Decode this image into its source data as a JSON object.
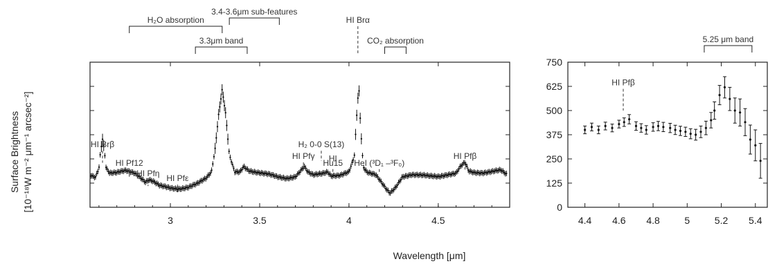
{
  "chart_data": [
    {
      "type": "scatter",
      "title": "",
      "xlabel": "Wavelength [μm]",
      "ylabel": "Surface Brightness",
      "ylabel_line2": "[10⁻¹⁸W m⁻² μm⁻¹ arcsec⁻²]",
      "xlim": [
        2.55,
        4.9
      ],
      "ylim": [
        0,
        750
      ],
      "xticks": [
        "3",
        "3.5",
        "4",
        "4.5"
      ],
      "xtick_values": [
        3,
        3.5,
        4,
        4.5
      ],
      "grid": false,
      "spectrum_knots": [
        [
          2.55,
          165
        ],
        [
          2.58,
          155
        ],
        [
          2.6,
          205
        ],
        [
          2.61,
          300
        ],
        [
          2.62,
          355
        ],
        [
          2.63,
          300
        ],
        [
          2.64,
          205
        ],
        [
          2.66,
          178
        ],
        [
          2.7,
          178
        ],
        [
          2.75,
          188
        ],
        [
          2.8,
          178
        ],
        [
          2.83,
          158
        ],
        [
          2.86,
          132
        ],
        [
          2.88,
          142
        ],
        [
          2.9,
          135
        ],
        [
          2.94,
          110
        ],
        [
          3.0,
          100
        ],
        [
          3.05,
          97
        ],
        [
          3.1,
          103
        ],
        [
          3.15,
          120
        ],
        [
          3.2,
          150
        ],
        [
          3.23,
          185
        ],
        [
          3.25,
          300
        ],
        [
          3.27,
          480
        ],
        [
          3.29,
          610
        ],
        [
          3.31,
          480
        ],
        [
          3.33,
          270
        ],
        [
          3.36,
          180
        ],
        [
          3.39,
          180
        ],
        [
          3.41,
          210
        ],
        [
          3.44,
          190
        ],
        [
          3.5,
          180
        ],
        [
          3.55,
          170
        ],
        [
          3.6,
          155
        ],
        [
          3.65,
          150
        ],
        [
          3.7,
          160
        ],
        [
          3.73,
          190
        ],
        [
          3.75,
          210
        ],
        [
          3.77,
          180
        ],
        [
          3.8,
          165
        ],
        [
          3.85,
          175
        ],
        [
          3.88,
          185
        ],
        [
          3.9,
          165
        ],
        [
          3.95,
          165
        ],
        [
          4.0,
          180
        ],
        [
          4.03,
          260
        ],
        [
          4.045,
          500
        ],
        [
          4.055,
          630
        ],
        [
          4.065,
          420
        ],
        [
          4.08,
          210
        ],
        [
          4.1,
          185
        ],
        [
          4.15,
          170
        ],
        [
          4.18,
          130
        ],
        [
          4.21,
          90
        ],
        [
          4.23,
          70
        ],
        [
          4.26,
          100
        ],
        [
          4.3,
          160
        ],
        [
          4.35,
          170
        ],
        [
          4.4,
          165
        ],
        [
          4.45,
          160
        ],
        [
          4.5,
          160
        ],
        [
          4.55,
          170
        ],
        [
          4.6,
          175
        ],
        [
          4.625,
          210
        ],
        [
          4.65,
          230
        ],
        [
          4.67,
          185
        ],
        [
          4.7,
          180
        ],
        [
          4.75,
          180
        ],
        [
          4.8,
          185
        ],
        [
          4.85,
          190
        ],
        [
          4.88,
          170
        ]
      ],
      "annotations": [
        {
          "id": "br-beta",
          "label": "HI Brβ",
          "x": 2.62,
          "y_top": 310,
          "line_bottom": 230
        },
        {
          "id": "pf12",
          "label": "HI Pf12",
          "x": 2.77,
          "y_top": 215,
          "line_bottom": 150
        },
        {
          "id": "pf-eta",
          "label": "HI Pfη",
          "x": 2.875,
          "y_top": 160,
          "line_bottom": 110
        },
        {
          "id": "pf-eps",
          "label": "HI Pfε",
          "x": 3.04,
          "y_top": 135,
          "line_bottom": 70
        },
        {
          "id": "pf-gamma",
          "label": "HI Pfγ",
          "x": 3.745,
          "y_top": 250,
          "line_bottom": 185
        },
        {
          "id": "h2",
          "label": "H₂ 0-0 S(13)",
          "x": 3.845,
          "y_top": 310,
          "line_bottom": 240
        },
        {
          "id": "hu15-a",
          "label": "HI",
          "x": 3.91,
          "y_top": 238
        },
        {
          "id": "hu15-b",
          "label": "Hu15",
          "x": 3.91,
          "y_top": 215,
          "line_bottom": 165
        },
        {
          "id": "hei",
          "label": "HeI (³D₁ –³F₀)",
          "x": 4.17,
          "y_top": 215,
          "line_bottom": 175
        },
        {
          "id": "pf-beta",
          "label": "HI Pfβ",
          "x": 4.65,
          "y_top": 250,
          "line_bottom": 195
        }
      ],
      "top_annotations": [
        {
          "id": "h2o",
          "label": "H₂O absorption",
          "x1": 2.77,
          "x2": 3.29
        },
        {
          "id": "subfeatures",
          "label": "3.4-3.6μm sub-features",
          "x1": 3.33,
          "x2": 3.61
        },
        {
          "id": "band33",
          "label": "3.3μm band",
          "x1": 3.14,
          "x2": 3.43
        },
        {
          "id": "co2",
          "label": "CO₂ absorption",
          "x1": 4.2,
          "x2": 4.32
        },
        {
          "id": "bralpha",
          "label": "HI Brα",
          "x": 4.05
        }
      ]
    },
    {
      "type": "scatter",
      "title": "",
      "xlim": [
        4.3,
        5.47
      ],
      "ylim": [
        0,
        750
      ],
      "xticks": [
        "4.4",
        "4.6",
        "4.8",
        "5",
        "5.2",
        "5.4"
      ],
      "xtick_values": [
        4.4,
        4.6,
        4.8,
        5.0,
        5.2,
        5.4
      ],
      "yticks": [
        "0",
        "125",
        "250",
        "375",
        "500",
        "625",
        "750"
      ],
      "ytick_values": [
        0,
        125,
        250,
        375,
        500,
        625,
        750
      ],
      "grid": false,
      "x": [
        4.4,
        4.44,
        4.48,
        4.52,
        4.56,
        4.6,
        4.63,
        4.66,
        4.7,
        4.73,
        4.76,
        4.8,
        4.83,
        4.86,
        4.9,
        4.93,
        4.96,
        4.99,
        5.02,
        5.05,
        5.08,
        5.11,
        5.14,
        5.16,
        5.19,
        5.22,
        5.25,
        5.28,
        5.31,
        5.34,
        5.37,
        5.4,
        5.43
      ],
      "y": [
        400,
        415,
        400,
        420,
        410,
        430,
        440,
        455,
        420,
        410,
        400,
        415,
        420,
        415,
        410,
        400,
        395,
        390,
        380,
        375,
        390,
        410,
        450,
        500,
        580,
        620,
        560,
        500,
        490,
        440,
        350,
        320,
        240
      ],
      "yerr": [
        20,
        20,
        20,
        20,
        20,
        20,
        22,
        24,
        22,
        22,
        22,
        22,
        24,
        24,
        24,
        24,
        24,
        24,
        26,
        28,
        30,
        35,
        40,
        45,
        50,
        55,
        60,
        65,
        70,
        70,
        75,
        80,
        90
      ],
      "annotations": [
        {
          "id": "pf-beta-r",
          "label": "HI Pfβ",
          "x": 4.625,
          "y_top": 630,
          "line_bottom": 500
        }
      ],
      "top_annotations": [
        {
          "id": "band525",
          "label": "5.25 μm band",
          "x1": 5.1,
          "x2": 5.38
        }
      ]
    }
  ]
}
